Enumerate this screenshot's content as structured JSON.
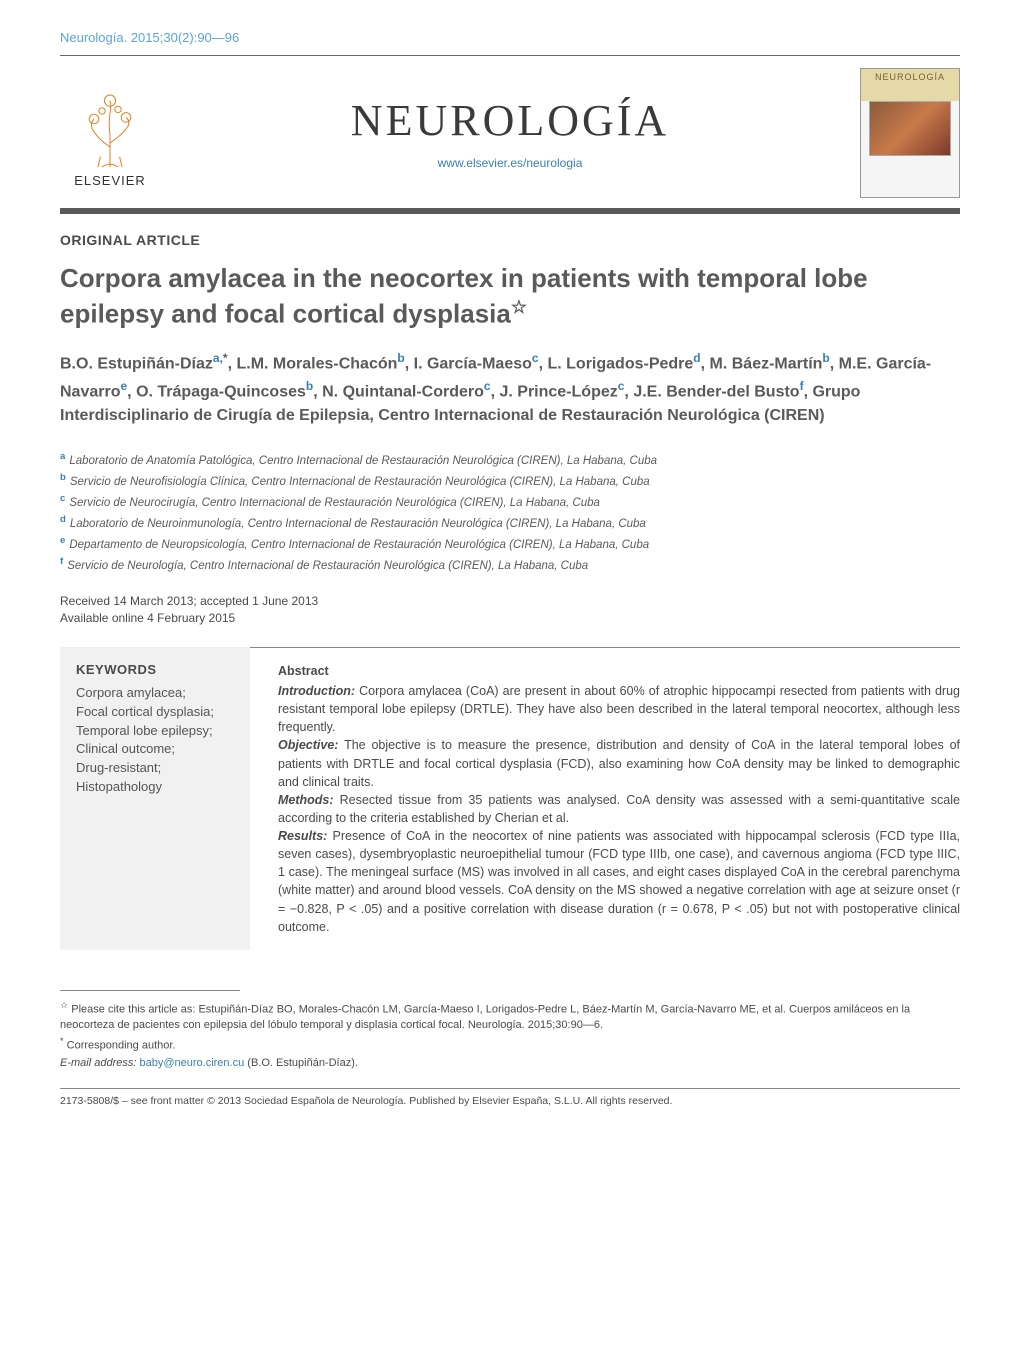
{
  "journal_ref": "Neurología. 2015;30(2):90—96",
  "masthead": {
    "elsevier_label": "ELSEVIER",
    "journal_title": "NEUROLOGÍA",
    "journal_url": "www.elsevier.es/neurologia",
    "cover_title": "NEUROLOGÍA"
  },
  "article_type": "ORIGINAL ARTICLE",
  "article_title": "Corpora amylacea in the neocortex in patients with temporal lobe epilepsy and focal cortical dysplasia",
  "title_star": "☆",
  "authors_html_parts": [
    {
      "name": "B.O. Estupiñán-Díaz",
      "sup": "a,*"
    },
    {
      "name": "L.M. Morales-Chacón",
      "sup": "b"
    },
    {
      "name": "I. García-Maeso",
      "sup": "c"
    },
    {
      "name": "L. Lorigados-Pedre",
      "sup": "d"
    },
    {
      "name": "M. Báez-Martín",
      "sup": "b"
    },
    {
      "name": "M.E. García-Navarro",
      "sup": "e"
    },
    {
      "name": "O. Trápaga-Quincoses",
      "sup": "b"
    },
    {
      "name": "N. Quintanal-Cordero",
      "sup": "c"
    },
    {
      "name": "J. Prince-López",
      "sup": "c"
    },
    {
      "name": "J.E. Bender-del Busto",
      "sup": "f"
    }
  ],
  "authors_tail": "Grupo Interdisciplinario de Cirugía de Epilepsia, Centro Internacional de Restauración Neurológica (CIREN)",
  "affiliations": [
    {
      "key": "a",
      "text": "Laboratorio de Anatomía Patológica, Centro Internacional de Restauración Neurológica (CIREN), La Habana, Cuba"
    },
    {
      "key": "b",
      "text": "Servicio de Neurofisiología Clínica, Centro Internacional de Restauración Neurológica (CIREN), La Habana, Cuba"
    },
    {
      "key": "c",
      "text": "Servicio de Neurocirugía, Centro Internacional de Restauración Neurológica (CIREN), La Habana, Cuba"
    },
    {
      "key": "d",
      "text": "Laboratorio de Neuroinmunología, Centro Internacional de Restauración Neurológica (CIREN), La Habana, Cuba"
    },
    {
      "key": "e",
      "text": "Departamento de Neuropsicología, Centro Internacional de Restauración Neurológica (CIREN), La Habana, Cuba"
    },
    {
      "key": "f",
      "text": "Servicio de Neurología, Centro Internacional de Restauración Neurológica (CIREN), La Habana, Cuba"
    }
  ],
  "dates": {
    "received_accepted": "Received 14 March 2013; accepted 1 June 2013",
    "online": "Available online 4 February 2015"
  },
  "keywords": {
    "heading": "KEYWORDS",
    "items": [
      "Corpora amylacea;",
      "Focal cortical dysplasia;",
      "Temporal lobe epilepsy;",
      "Clinical outcome;",
      "Drug-resistant;",
      "Histopathology"
    ]
  },
  "abstract": {
    "heading": "Abstract",
    "sections": [
      {
        "label": "Introduction:",
        "text": " Corpora amylacea (CoA) are present in about 60% of atrophic hippocampi resected from patients with drug resistant temporal lobe epilepsy (DRTLE). They have also been described in the lateral temporal neocortex, although less frequently."
      },
      {
        "label": "Objective:",
        "text": " The objective is to measure the presence, distribution and density of CoA in the lateral temporal lobes of patients with DRTLE and focal cortical dysplasia (FCD), also examining how CoA density may be linked to demographic and clinical traits."
      },
      {
        "label": "Methods:",
        "text": " Resected tissue from 35 patients was analysed. CoA density was assessed with a semi-quantitative scale according to the criteria established by Cherian et al."
      },
      {
        "label": "Results:",
        "text": " Presence of CoA in the neocortex of nine patients was associated with hippocampal sclerosis (FCD type IIIa, seven cases), dysembryoplastic neuroepithelial tumour (FCD type IIIb, one case), and cavernous angioma (FCD type IIIC, 1 case). The meningeal surface (MS) was involved in all cases, and eight cases displayed CoA in the cerebral parenchyma (white matter) and around blood vessels. CoA density on the MS showed a negative correlation with age at seizure onset (r = −0.828, P < .05) and a positive correlation with disease duration (r = 0.678, P < .05) but not with postoperative clinical outcome."
      }
    ]
  },
  "footnotes": {
    "cite": "Please cite this article as: Estupiñán-Díaz BO, Morales-Chacón LM, García-Maeso I, Lorigados-Pedre L, Báez-Martín M, García-Navarro ME, et al. Cuerpos amiláceos en la neocorteza de pacientes con epilepsia del lóbulo temporal y displasia cortical focal. Neurología. 2015;30:90—6.",
    "corresponding": "Corresponding author.",
    "email_label": "E-mail address:",
    "email": "baby@neuro.ciren.cu",
    "email_author": "(B.O. Estupiñán-Díaz)."
  },
  "copyright": "2173-5808/$ – see front matter © 2013 Sociedad Española de Neurología. Published by Elsevier España, S.L.U. All rights reserved.",
  "colors": {
    "link": "#3b7fb0",
    "heading_gray": "#5a5a5a",
    "rule_gray": "#888",
    "kw_bg": "#f1f1f1"
  }
}
